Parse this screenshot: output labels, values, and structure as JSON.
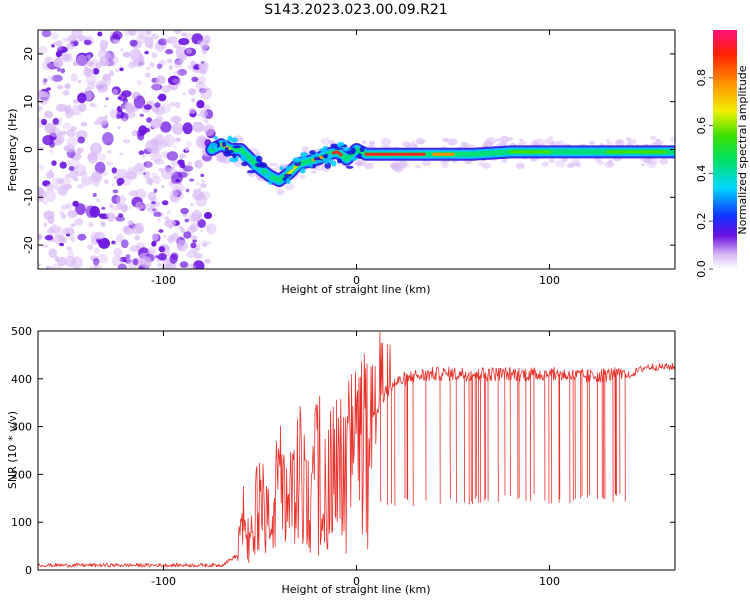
{
  "title": "S143.2023.023.00.09.R21",
  "colors": {
    "snr_line": "#e8302a",
    "ridge_core": "#e8302a",
    "noise_light": "#d9b8f5",
    "noise_dark": "#6a10e0"
  },
  "chart_data": [
    {
      "type": "heatmap",
      "title": "S143.2023.023.00.09.R21",
      "xlabel": "Height of straight line (km)",
      "ylabel": "Frequency (Hz)",
      "xlim": [
        -165,
        165
      ],
      "ylim": [
        -25,
        25
      ],
      "x_ticks": [
        -100,
        0,
        100
      ],
      "y_ticks": [
        -20,
        -10,
        0,
        10,
        20
      ],
      "grid": false,
      "noise_region_x": [
        -165,
        -75
      ],
      "ridge": {
        "x": [
          -75,
          -70,
          -65,
          -60,
          -55,
          -50,
          -45,
          -40,
          -35,
          -30,
          -25,
          -20,
          -15,
          -10,
          -5,
          0,
          5,
          10,
          20,
          30,
          40,
          50,
          60,
          80,
          100,
          120,
          140,
          165
        ],
        "y": [
          0,
          1,
          0,
          0,
          -2,
          -4,
          -5.5,
          -6.5,
          -5,
          -3,
          -2.5,
          -2,
          -1,
          -0.5,
          -2,
          0,
          -1,
          -1,
          -1,
          -1,
          -1,
          -1,
          -1,
          -0.5,
          -0.5,
          -0.5,
          -0.5,
          -0.5
        ]
      },
      "colorbar": {
        "label": "Normalized spectral amplitude",
        "range": [
          0,
          1
        ],
        "ticks": [
          0.0,
          0.2,
          0.4,
          0.6,
          0.8
        ]
      }
    },
    {
      "type": "line",
      "xlabel": "Height of straight line (km)",
      "ylabel": "SNR (10 * v/v)",
      "xlim": [
        -165,
        165
      ],
      "ylim": [
        0,
        500
      ],
      "x_ticks": [
        -100,
        0,
        100
      ],
      "y_ticks": [
        0,
        100,
        200,
        300,
        400,
        500
      ],
      "grid": false,
      "series": [
        {
          "x": [
            -165,
            -150,
            -130,
            -110,
            -90,
            -70,
            -62,
            -58,
            -55,
            -50,
            -45,
            -40,
            -35,
            -30,
            -25,
            -20,
            -15,
            -10,
            -5,
            0,
            5,
            10,
            15,
            20,
            25,
            30,
            40,
            50,
            60,
            80,
            100,
            120,
            135,
            140,
            150,
            165
          ],
          "values": [
            10,
            10,
            10,
            10,
            10,
            10,
            30,
            110,
            60,
            150,
            90,
            180,
            110,
            200,
            150,
            220,
            180,
            210,
            250,
            270,
            320,
            330,
            370,
            390,
            400,
            405,
            410,
            410,
            410,
            410,
            410,
            405,
            410,
            405,
            425,
            425
          ]
        }
      ]
    }
  ]
}
